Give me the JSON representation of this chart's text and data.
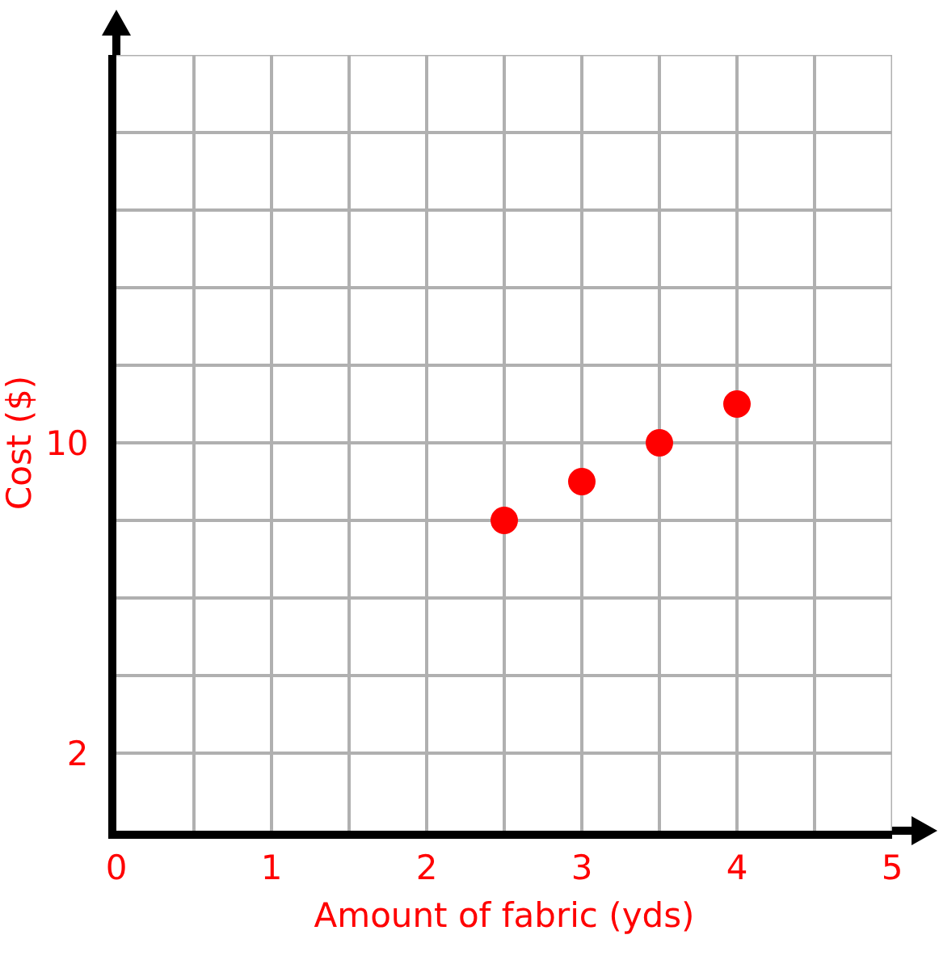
{
  "chart_data": {
    "type": "scatter",
    "xlabel": "Amount of fabric (yds)",
    "ylabel": "Cost ($)",
    "x": [
      2.5,
      3,
      3.5,
      4
    ],
    "series": [
      {
        "color": "#ff0000",
        "values": [
          8,
          9,
          10,
          11
        ]
      }
    ],
    "xlim": [
      0,
      5
    ],
    "ylim": [
      0,
      20
    ],
    "xticks": [
      0,
      {
        "value": 0.5,
        "label": null
      },
      1,
      {
        "value": 1.5,
        "label": null
      },
      2,
      {
        "value": 2.5,
        "label": null
      },
      3,
      {
        "value": 3.5,
        "label": null
      },
      4,
      {
        "value": 4.5,
        "label": null
      },
      5
    ],
    "yticks": [
      2,
      {
        "value": 4,
        "label": null
      },
      {
        "value": 6,
        "label": null
      },
      {
        "value": 8,
        "label": null
      },
      10,
      {
        "value": 12,
        "label": null
      },
      {
        "value": 14,
        "label": null
      },
      {
        "value": 16,
        "label": null
      },
      {
        "value": 18,
        "label": null
      },
      {
        "value": 20,
        "label": null
      }
    ],
    "grid": true,
    "marker": "circle"
  }
}
